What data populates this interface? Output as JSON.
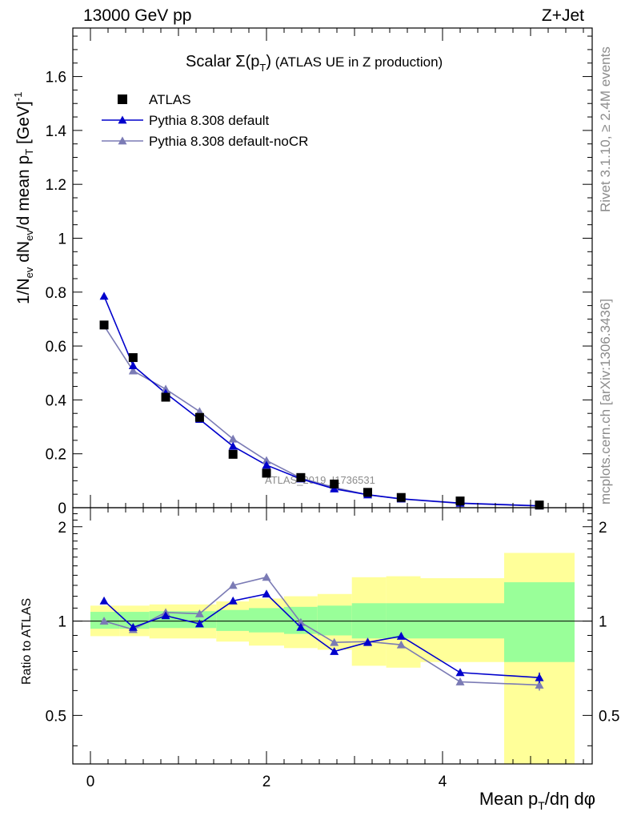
{
  "header": {
    "energy": "13000 GeV pp",
    "process": "Z+Jet"
  },
  "side_labels": {
    "rivet": "Rivet 3.1.10, ≥ 2.4M events",
    "mcplots": "mcplots.cern.ch [arXiv:1306.3436]"
  },
  "watermark": "ATLAS_2019_I1736531",
  "chart_data": [
    {
      "type": "scatter",
      "panel": "main",
      "title_main": "Scalar Σ(p",
      "title_sub": "T",
      "title_close": ")",
      "title_rest": " (ATLAS UE in Z production)",
      "ylabel_parts": [
        "1/N",
        "ev",
        " dN",
        "ev",
        "/d mean p",
        "T",
        " [GeV]",
        "-1"
      ],
      "xlim": [
        -0.2,
        5.7
      ],
      "ylim": [
        0,
        1.78
      ],
      "y_ticks": [
        0,
        0.2,
        0.4,
        0.6,
        0.8,
        1,
        1.2,
        1.4,
        1.6
      ],
      "y_tick_labels": [
        "0",
        "0.2",
        "0.4",
        "0.6",
        "0.8",
        "1",
        "1.2",
        "1.4",
        "1.6"
      ],
      "legend_position": "top-left",
      "series": [
        {
          "name": "ATLAS",
          "marker": "square",
          "color": "#000000",
          "x": [
            0.155,
            0.485,
            0.855,
            1.24,
            1.62,
            2.0,
            2.39,
            2.77,
            3.15,
            3.53,
            4.2,
            5.1
          ],
          "y": [
            0.678,
            0.557,
            0.41,
            0.335,
            0.198,
            0.128,
            0.112,
            0.088,
            0.057,
            0.038,
            0.025,
            0.01
          ]
        },
        {
          "name": "Pythia 8.308 default",
          "marker": "triangle",
          "color": "#0000cc",
          "x": [
            0.155,
            0.485,
            0.855,
            1.24,
            1.62,
            2.0,
            2.39,
            2.77,
            3.15,
            3.53,
            4.2,
            5.1
          ],
          "y": [
            0.785,
            0.527,
            0.425,
            0.328,
            0.228,
            0.158,
            0.107,
            0.07,
            0.048,
            0.033,
            0.017,
            0.007
          ]
        },
        {
          "name": "Pythia 8.308 default-noCR",
          "marker": "triangle",
          "color": "#7b7bb5",
          "x": [
            0.155,
            0.485,
            0.855,
            1.24,
            1.62,
            2.0,
            2.39,
            2.77,
            3.15,
            3.53,
            4.2,
            5.1
          ],
          "y": [
            0.675,
            0.508,
            0.44,
            0.357,
            0.255,
            0.175,
            0.11,
            0.075,
            0.048,
            0.032,
            0.016,
            0.006
          ]
        }
      ]
    },
    {
      "type": "scatter",
      "panel": "ratio",
      "ylabel": "Ratio to ATLAS",
      "xlabel_parts": [
        "Mean p",
        "T",
        "/dη dφ"
      ],
      "xlim": [
        -0.2,
        5.7
      ],
      "ylim": [
        0.35,
        2.3
      ],
      "x_ticks": [
        0,
        2,
        4
      ],
      "x_tick_labels": [
        "0",
        "2",
        "4"
      ],
      "y_ticks": [
        0.5,
        1,
        2
      ],
      "y_tick_labels": [
        "0.5",
        "1",
        "2"
      ],
      "bands": {
        "bin_edges": [
          0.0,
          0.33,
          0.67,
          1.05,
          1.43,
          1.8,
          2.2,
          2.58,
          2.97,
          3.36,
          3.75,
          4.7,
          5.5
        ],
        "stat_sys_low": [
          0.945,
          0.945,
          0.95,
          0.95,
          0.93,
          0.92,
          0.91,
          0.9,
          0.88,
          0.88,
          0.88,
          0.74
        ],
        "stat_sys_high": [
          1.07,
          1.07,
          1.075,
          1.075,
          1.085,
          1.1,
          1.11,
          1.12,
          1.14,
          1.14,
          1.14,
          1.33
        ],
        "total_low": [
          0.895,
          0.895,
          0.88,
          0.88,
          0.86,
          0.835,
          0.82,
          0.81,
          0.72,
          0.71,
          0.74,
          0.35
        ],
        "total_high": [
          1.12,
          1.12,
          1.13,
          1.13,
          1.155,
          1.18,
          1.2,
          1.22,
          1.38,
          1.39,
          1.37,
          1.65
        ]
      },
      "series": [
        {
          "name": "Pythia 8.308 default",
          "color": "#0000cc",
          "x": [
            0.155,
            0.485,
            0.855,
            1.24,
            1.62,
            2.0,
            2.39,
            2.77,
            3.15,
            3.53,
            4.2,
            5.1
          ],
          "y": [
            1.16,
            0.955,
            1.04,
            0.98,
            1.16,
            1.22,
            0.955,
            0.8,
            0.855,
            0.895,
            0.685,
            0.66
          ],
          "err": [
            0.008,
            0.008,
            0.008,
            0.008,
            0.01,
            0.01,
            0.01,
            0.012,
            0.012,
            0.015,
            0.015,
            0.025
          ]
        },
        {
          "name": "Pythia 8.308 default-noCR",
          "color": "#7b7bb5",
          "x": [
            0.155,
            0.485,
            0.855,
            1.24,
            1.62,
            2.0,
            2.39,
            2.77,
            3.15,
            3.53,
            4.2,
            5.1
          ],
          "y": [
            1.0,
            0.94,
            1.065,
            1.055,
            1.3,
            1.38,
            0.99,
            0.855,
            0.86,
            0.84,
            0.64,
            0.625
          ],
          "err": [
            0.008,
            0.008,
            0.008,
            0.008,
            0.01,
            0.01,
            0.01,
            0.012,
            0.012,
            0.015,
            0.015,
            0.025
          ]
        }
      ]
    }
  ]
}
